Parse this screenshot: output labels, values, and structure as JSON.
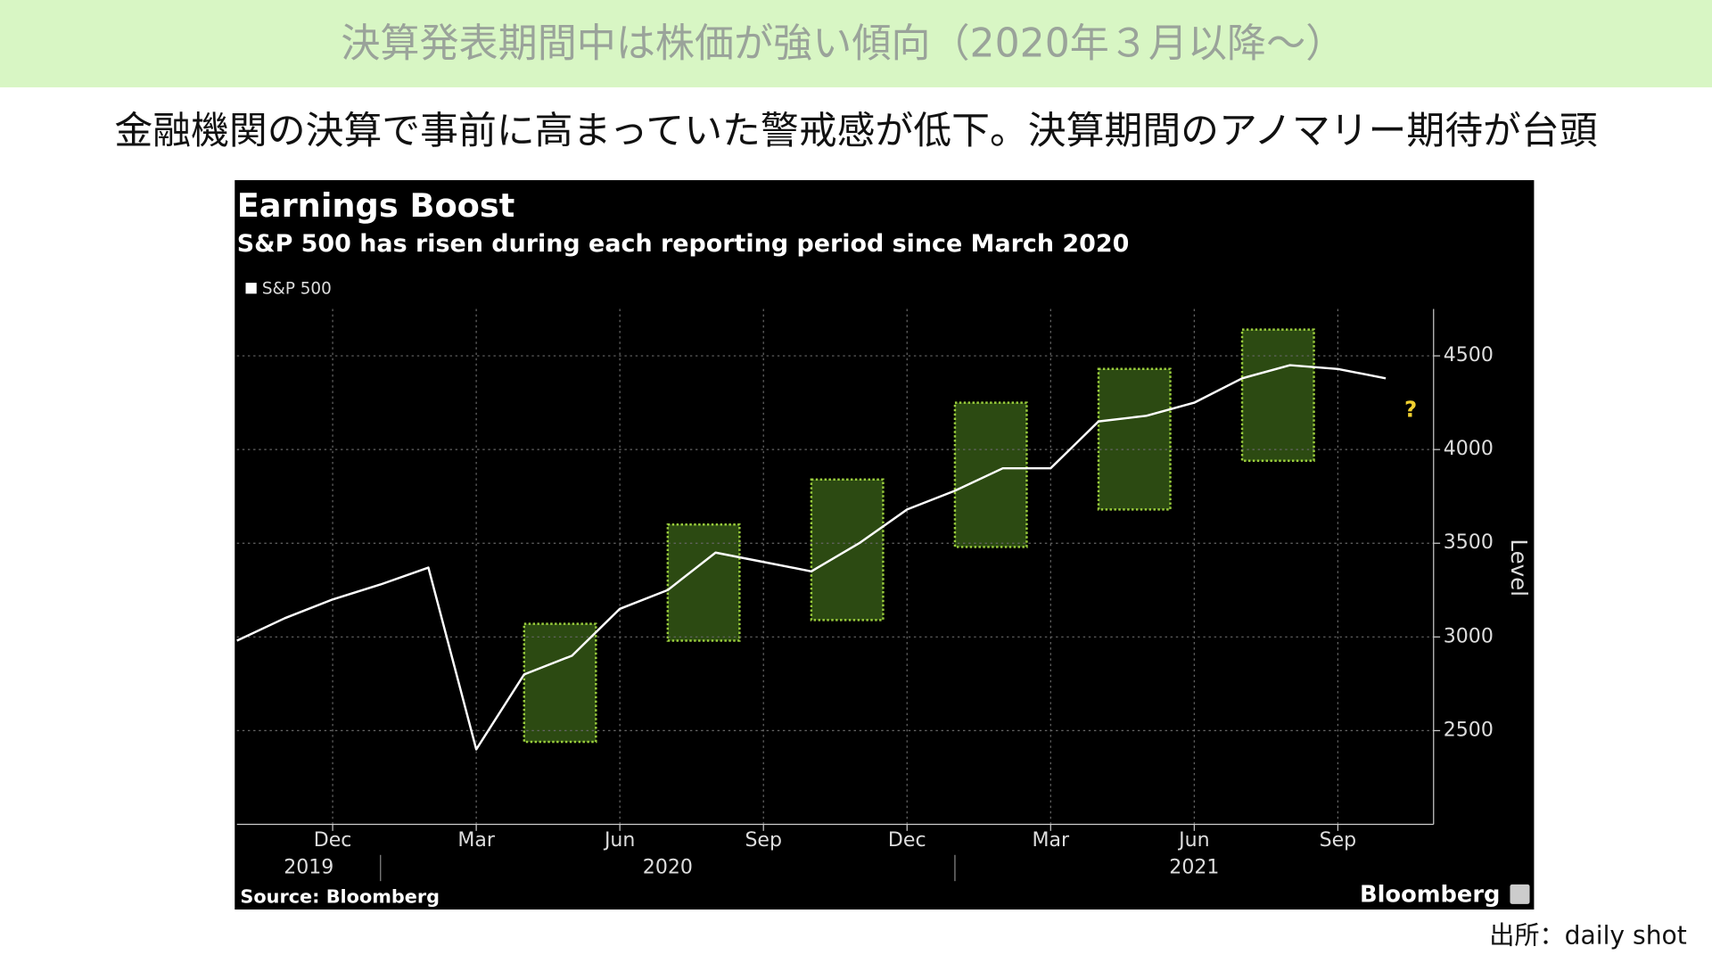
{
  "header": {
    "title": "決算発表期間中は株価が強い傾向（2020年３月以降～）",
    "subtitle": "金融機関の決算で事前に高まっていた警戒感が低下。決算期間のアノマリー期待が台頭"
  },
  "chart_data": {
    "type": "line",
    "title": "Earnings Boost",
    "subtitle": "S&P 500 has risen during each reporting period since March 2020",
    "x": [
      "2019-10",
      "2019-11",
      "2019-12",
      "2020-01",
      "2020-02",
      "2020-03",
      "2020-04",
      "2020-05",
      "2020-06",
      "2020-07",
      "2020-08",
      "2020-09",
      "2020-10",
      "2020-11",
      "2020-12",
      "2021-01",
      "2021-02",
      "2021-03",
      "2021-04",
      "2021-05",
      "2021-06",
      "2021-07",
      "2021-08",
      "2021-09",
      "2021-10"
    ],
    "series": [
      {
        "name": "S&P 500",
        "color": "#ffffff",
        "values": [
          2980,
          3100,
          3200,
          3280,
          3370,
          2400,
          2800,
          2900,
          3150,
          3250,
          3450,
          3400,
          3350,
          3500,
          3680,
          3780,
          3900,
          3900,
          4150,
          4180,
          4250,
          4380,
          4450,
          4430,
          4380
        ]
      }
    ],
    "xlim": [
      "2019-10",
      "2021-11"
    ],
    "xticks": [
      {
        "value": "2019-12",
        "label": "Dec"
      },
      {
        "value": "2020-03",
        "label": "Mar"
      },
      {
        "value": "2020-06",
        "label": "Jun"
      },
      {
        "value": "2020-09",
        "label": "Sep"
      },
      {
        "value": "2020-12",
        "label": "Dec"
      },
      {
        "value": "2021-03",
        "label": "Mar"
      },
      {
        "value": "2021-06",
        "label": "Jun"
      },
      {
        "value": "2021-09",
        "label": "Sep"
      }
    ],
    "year_labels": [
      "2019",
      "2020",
      "2021"
    ],
    "ylim": [
      2000,
      4750
    ],
    "yticks": [
      2500,
      3000,
      3500,
      4000,
      4500
    ],
    "ylabel": "Level",
    "grid": true,
    "highlights": [
      {
        "x": [
          "2020-04",
          "2020-05"
        ],
        "y": [
          2440,
          3070
        ]
      },
      {
        "x": [
          "2020-07",
          "2020-08"
        ],
        "y": [
          2980,
          3600
        ]
      },
      {
        "x": [
          "2020-10",
          "2020-11"
        ],
        "y": [
          3090,
          3840
        ]
      },
      {
        "x": [
          "2021-01",
          "2021-02"
        ],
        "y": [
          3480,
          4250
        ]
      },
      {
        "x": [
          "2021-04",
          "2021-05"
        ],
        "y": [
          3680,
          4430
        ]
      },
      {
        "x": [
          "2021-07",
          "2021-08"
        ],
        "y": [
          3940,
          4640
        ]
      }
    ],
    "highlight_color": "#2c4a12",
    "annotation": "?",
    "source": "Source: Bloomberg",
    "brand": "Bloomberg"
  },
  "footer": {
    "credit": "出所：daily shot"
  }
}
